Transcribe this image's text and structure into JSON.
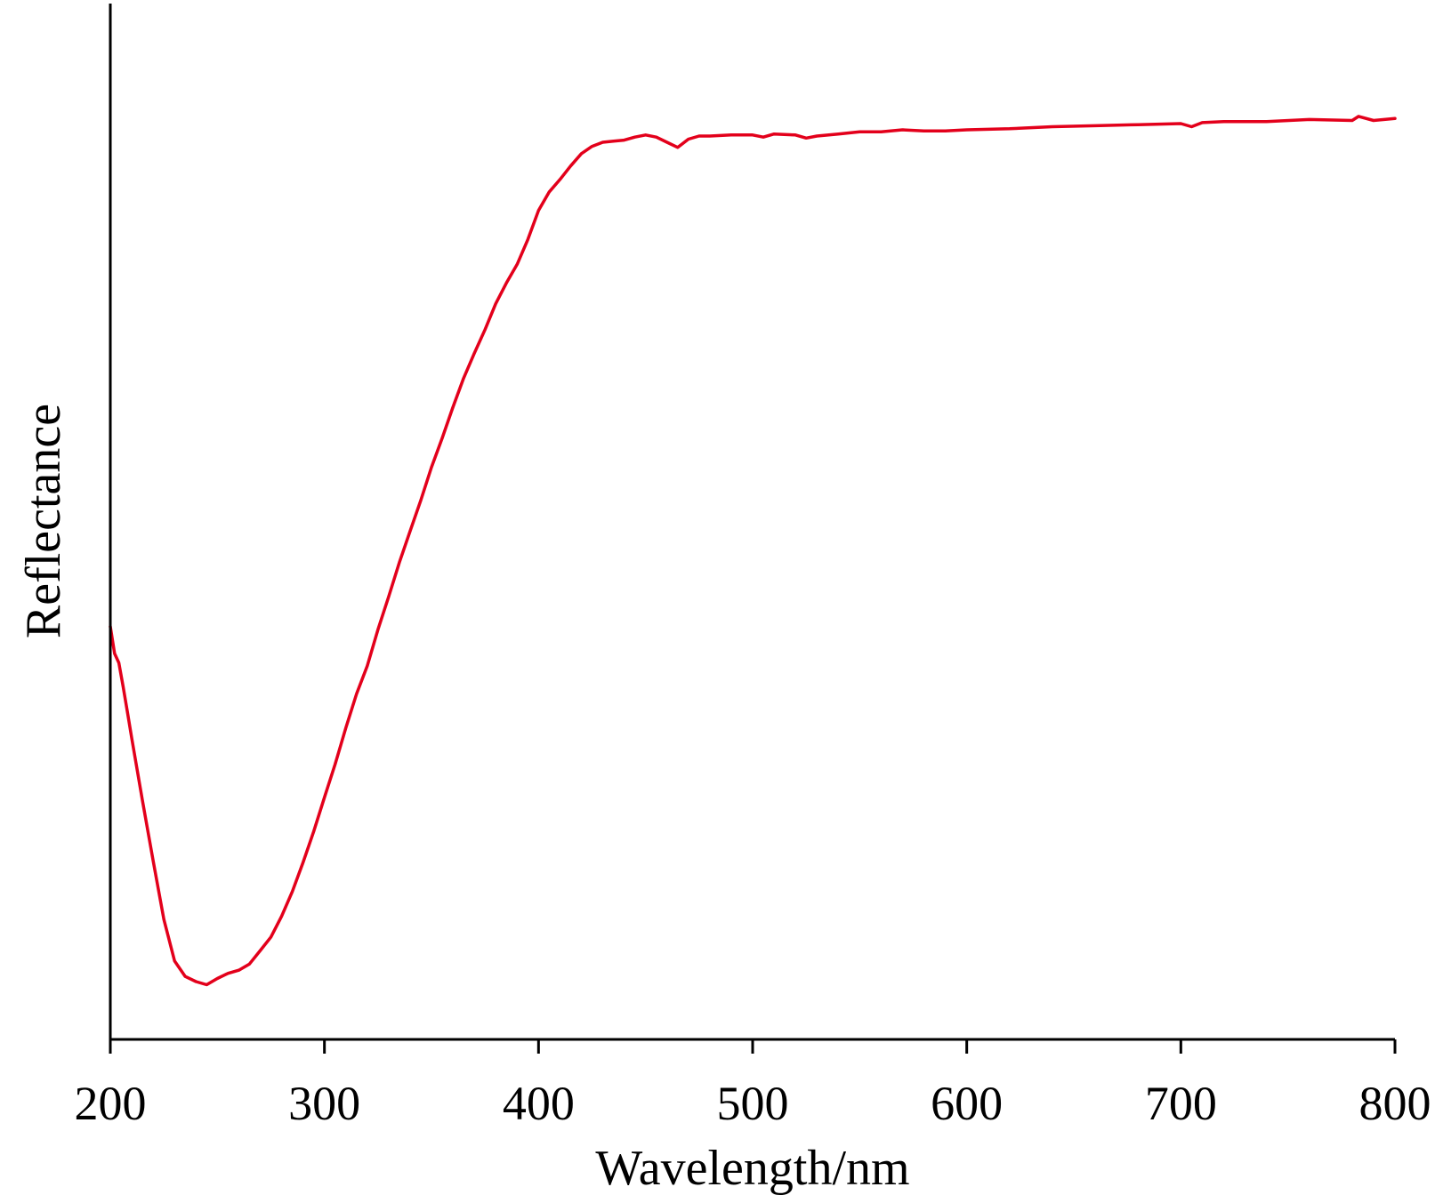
{
  "chart_data": {
    "type": "line",
    "title": "",
    "xlabel": "Wavelength/nm",
    "ylabel": "Reflectance",
    "xlim": [
      200,
      800
    ],
    "ylim": [
      0,
      1
    ],
    "x_ticks": [
      "200",
      "300",
      "400",
      "500",
      "600",
      "700",
      "800"
    ],
    "y_ticks": [],
    "grid": false,
    "legend": "none",
    "colors": {
      "series": "#e3001b",
      "axis": "#000000"
    },
    "series": [
      {
        "x": [
          200,
          202,
          204,
          206,
          208,
          210,
          215,
          220,
          225,
          230,
          235,
          240,
          245,
          250,
          255,
          260,
          265,
          270,
          275,
          280,
          285,
          290,
          295,
          300,
          305,
          310,
          315,
          320,
          325,
          330,
          335,
          340,
          345,
          350,
          355,
          360,
          365,
          370,
          375,
          380,
          385,
          390,
          395,
          400,
          405,
          410,
          415,
          420,
          425,
          430,
          435,
          440,
          445,
          450,
          455,
          460,
          465,
          470,
          475,
          480,
          490,
          500,
          505,
          510,
          520,
          525,
          530,
          540,
          550,
          560,
          570,
          580,
          590,
          600,
          620,
          640,
          660,
          680,
          700,
          705,
          710,
          720,
          740,
          760,
          780,
          783,
          790,
          800
        ],
        "y": [
          0.398,
          0.372,
          0.363,
          0.34,
          0.315,
          0.29,
          0.23,
          0.172,
          0.115,
          0.075,
          0.06,
          0.055,
          0.052,
          0.058,
          0.063,
          0.066,
          0.072,
          0.085,
          0.098,
          0.118,
          0.142,
          0.17,
          0.2,
          0.233,
          0.265,
          0.3,
          0.333,
          0.36,
          0.395,
          0.427,
          0.46,
          0.49,
          0.52,
          0.552,
          0.58,
          0.61,
          0.638,
          0.662,
          0.685,
          0.71,
          0.73,
          0.748,
          0.772,
          0.8,
          0.818,
          0.83,
          0.843,
          0.855,
          0.862,
          0.866,
          0.867,
          0.868,
          0.871,
          0.873,
          0.871,
          0.866,
          0.861,
          0.869,
          0.872,
          0.872,
          0.873,
          0.873,
          0.871,
          0.874,
          0.873,
          0.87,
          0.872,
          0.874,
          0.876,
          0.876,
          0.878,
          0.877,
          0.877,
          0.878,
          0.879,
          0.881,
          0.882,
          0.883,
          0.884,
          0.881,
          0.885,
          0.886,
          0.886,
          0.888,
          0.887,
          0.891,
          0.887,
          0.889
        ]
      }
    ]
  }
}
